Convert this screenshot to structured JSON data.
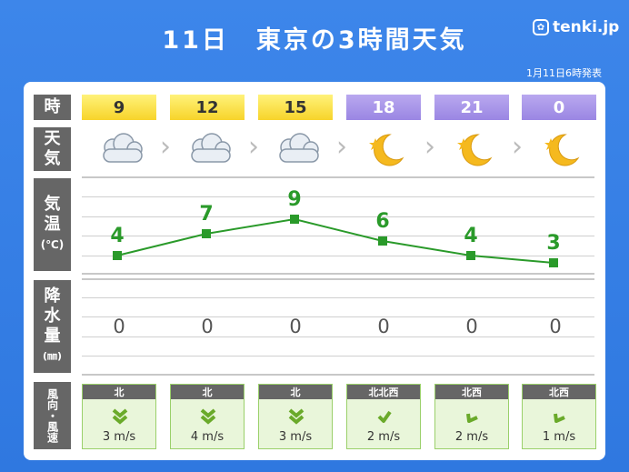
{
  "title": "11日　東京の3時間天気",
  "brand": "tenki.jp",
  "issued": "1月11日6時発表",
  "row_labels": {
    "time": "時",
    "weather": [
      "天",
      "気"
    ],
    "temp": [
      "気",
      "温"
    ],
    "temp_unit": "(℃)",
    "precip": [
      "降",
      "水",
      "量"
    ],
    "precip_unit": "(㎜)",
    "wind": "風向・風速"
  },
  "columns": [
    {
      "hour": "9",
      "period": "day",
      "weather_icon": "cloud-icon",
      "temp": "4",
      "precip": "0",
      "wind_dir": "北",
      "wind_speed": "3 m/s",
      "wind_icon": "wind-double-chevron-down-icon"
    },
    {
      "hour": "12",
      "period": "day",
      "weather_icon": "cloud-icon",
      "temp": "7",
      "precip": "0",
      "wind_dir": "北",
      "wind_speed": "4 m/s",
      "wind_icon": "wind-double-chevron-down-icon"
    },
    {
      "hour": "15",
      "period": "day",
      "weather_icon": "cloud-icon",
      "temp": "9",
      "precip": "0",
      "wind_dir": "北",
      "wind_speed": "3 m/s",
      "wind_icon": "wind-double-chevron-down-icon"
    },
    {
      "hour": "18",
      "period": "night",
      "weather_icon": "moon-star-icon",
      "temp": "6",
      "precip": "0",
      "wind_dir": "北北西",
      "wind_speed": "2 m/s",
      "wind_icon": "wind-arrow-icon"
    },
    {
      "hour": "21",
      "period": "night",
      "weather_icon": "moon-star-icon",
      "temp": "4",
      "precip": "0",
      "wind_dir": "北西",
      "wind_speed": "2 m/s",
      "wind_icon": "wind-arrow-icon"
    },
    {
      "hour": "0",
      "period": "night",
      "weather_icon": "moon-star-icon",
      "temp": "3",
      "precip": "0",
      "wind_dir": "北西",
      "wind_speed": "1 m/s",
      "wind_icon": "wind-arrow-icon"
    }
  ],
  "colors": {
    "background": "#3d86ea",
    "temp_line": "#2a9a2a",
    "day_header": "#f7d42a",
    "night_header": "#9a86e3"
  },
  "chart_data": {
    "type": "line",
    "title": "",
    "x": [
      "9",
      "12",
      "15",
      "18",
      "21",
      "0"
    ],
    "series": [
      {
        "values": [
          4,
          7,
          9,
          6,
          4,
          3
        ]
      }
    ],
    "xlabel": "時",
    "ylabel": "気温(℃)",
    "ylim": [
      0,
      12
    ]
  }
}
